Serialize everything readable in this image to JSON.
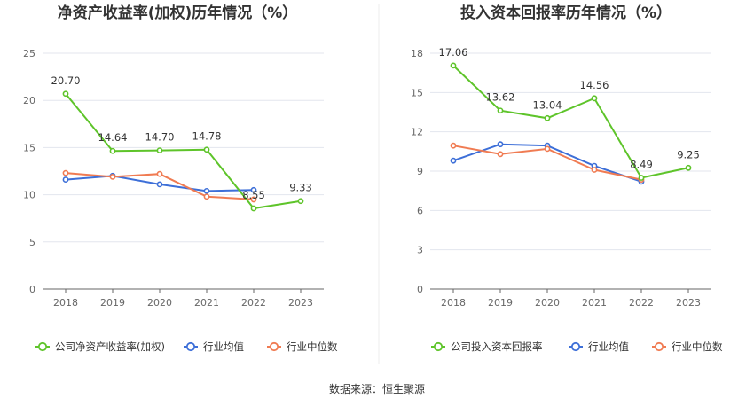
{
  "source": "数据来源：恒生聚源",
  "colors": {
    "company": "#5ec42a",
    "avg": "#3d6fd8",
    "median": "#f07b52",
    "grid": "#e3e6ee",
    "axis": "#666666"
  },
  "chart_data": [
    {
      "type": "line",
      "title": "净资产收益率(加权)历年情况（%）",
      "categories": [
        "2018",
        "2019",
        "2020",
        "2021",
        "2022",
        "2023"
      ],
      "ylim": [
        0,
        25
      ],
      "yticks": [
        "0",
        "5",
        "10",
        "15",
        "20",
        "25"
      ],
      "grid": true,
      "legend_position": "bottom",
      "series": [
        {
          "name": "公司净资产收益率(加权)",
          "values": [
            20.7,
            14.64,
            14.7,
            14.78,
            8.55,
            9.33
          ],
          "labels": [
            "20.70",
            "14.64",
            "14.70",
            "14.78",
            "8.55",
            "9.33"
          ]
        },
        {
          "name": "行业均值",
          "values": [
            11.6,
            12.0,
            11.1,
            10.4,
            10.5,
            null
          ]
        },
        {
          "name": "行业中位数",
          "values": [
            12.3,
            11.9,
            12.2,
            9.8,
            9.5,
            null
          ]
        }
      ]
    },
    {
      "type": "line",
      "title": "投入资本回报率历年情况（%）",
      "categories": [
        "2018",
        "2019",
        "2020",
        "2021",
        "2022",
        "2023"
      ],
      "ylim": [
        0,
        18
      ],
      "yticks": [
        "0",
        "3",
        "6",
        "9",
        "12",
        "15",
        "18"
      ],
      "grid": true,
      "legend_position": "bottom",
      "series": [
        {
          "name": "公司投入资本回报率",
          "values": [
            17.06,
            13.62,
            13.04,
            14.56,
            8.49,
            9.25
          ],
          "labels": [
            "17.06",
            "13.62",
            "13.04",
            "14.56",
            "8.49",
            "9.25"
          ]
        },
        {
          "name": "行业均值",
          "values": [
            9.8,
            11.05,
            10.95,
            9.4,
            8.2,
            null
          ]
        },
        {
          "name": "行业中位数",
          "values": [
            10.95,
            10.3,
            10.7,
            9.1,
            8.35,
            null
          ]
        }
      ]
    }
  ]
}
